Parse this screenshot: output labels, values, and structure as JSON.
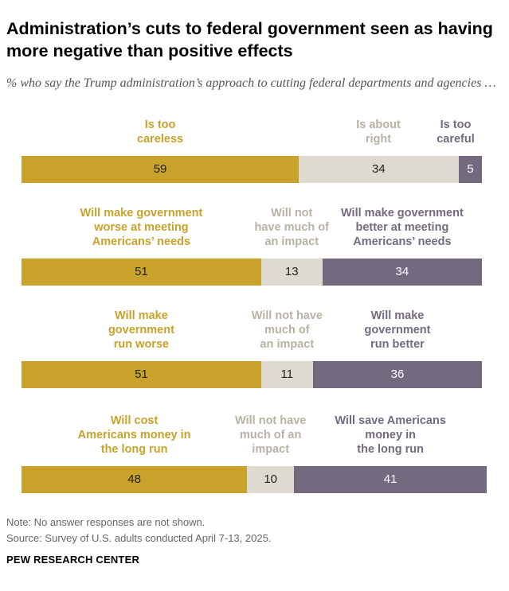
{
  "title": "Administration’s cuts to federal government seen as having more negative than positive effects",
  "subtitle": "% who say the Trump administration’s approach to cutting federal departments and agencies …",
  "colors": {
    "negative": "#c9a22b",
    "neutral": "#dedad0",
    "positive": "#736a80"
  },
  "chart_data": [
    {
      "type": "bar",
      "stacked": true,
      "orientation": "horizontal",
      "categories": [
        "Is too careless",
        "Is about right",
        "Is too careful"
      ],
      "values": [
        59,
        34,
        5
      ]
    },
    {
      "type": "bar",
      "stacked": true,
      "orientation": "horizontal",
      "categories": [
        "Will make government worse at meeting Americans’ needs",
        "Will not have much of an impact",
        "Will make government better at meeting Americans’ needs"
      ],
      "values": [
        51,
        13,
        34
      ]
    },
    {
      "type": "bar",
      "stacked": true,
      "orientation": "horizontal",
      "categories": [
        "Will make government run worse",
        "Will not have much of an impact",
        "Will make government run better"
      ],
      "values": [
        51,
        11,
        36
      ]
    },
    {
      "type": "bar",
      "stacked": true,
      "orientation": "horizontal",
      "categories": [
        "Will cost Americans money in the long run",
        "Will not have much of an impact",
        "Will save Americans money in the long run"
      ],
      "values": [
        48,
        10,
        41
      ]
    }
  ],
  "notes": {
    "note": "Note: No answer responses are not shown.",
    "source": "Source: Survey of U.S. adults conducted April 7-13, 2025."
  },
  "brand": "PEW RESEARCH CENTER"
}
